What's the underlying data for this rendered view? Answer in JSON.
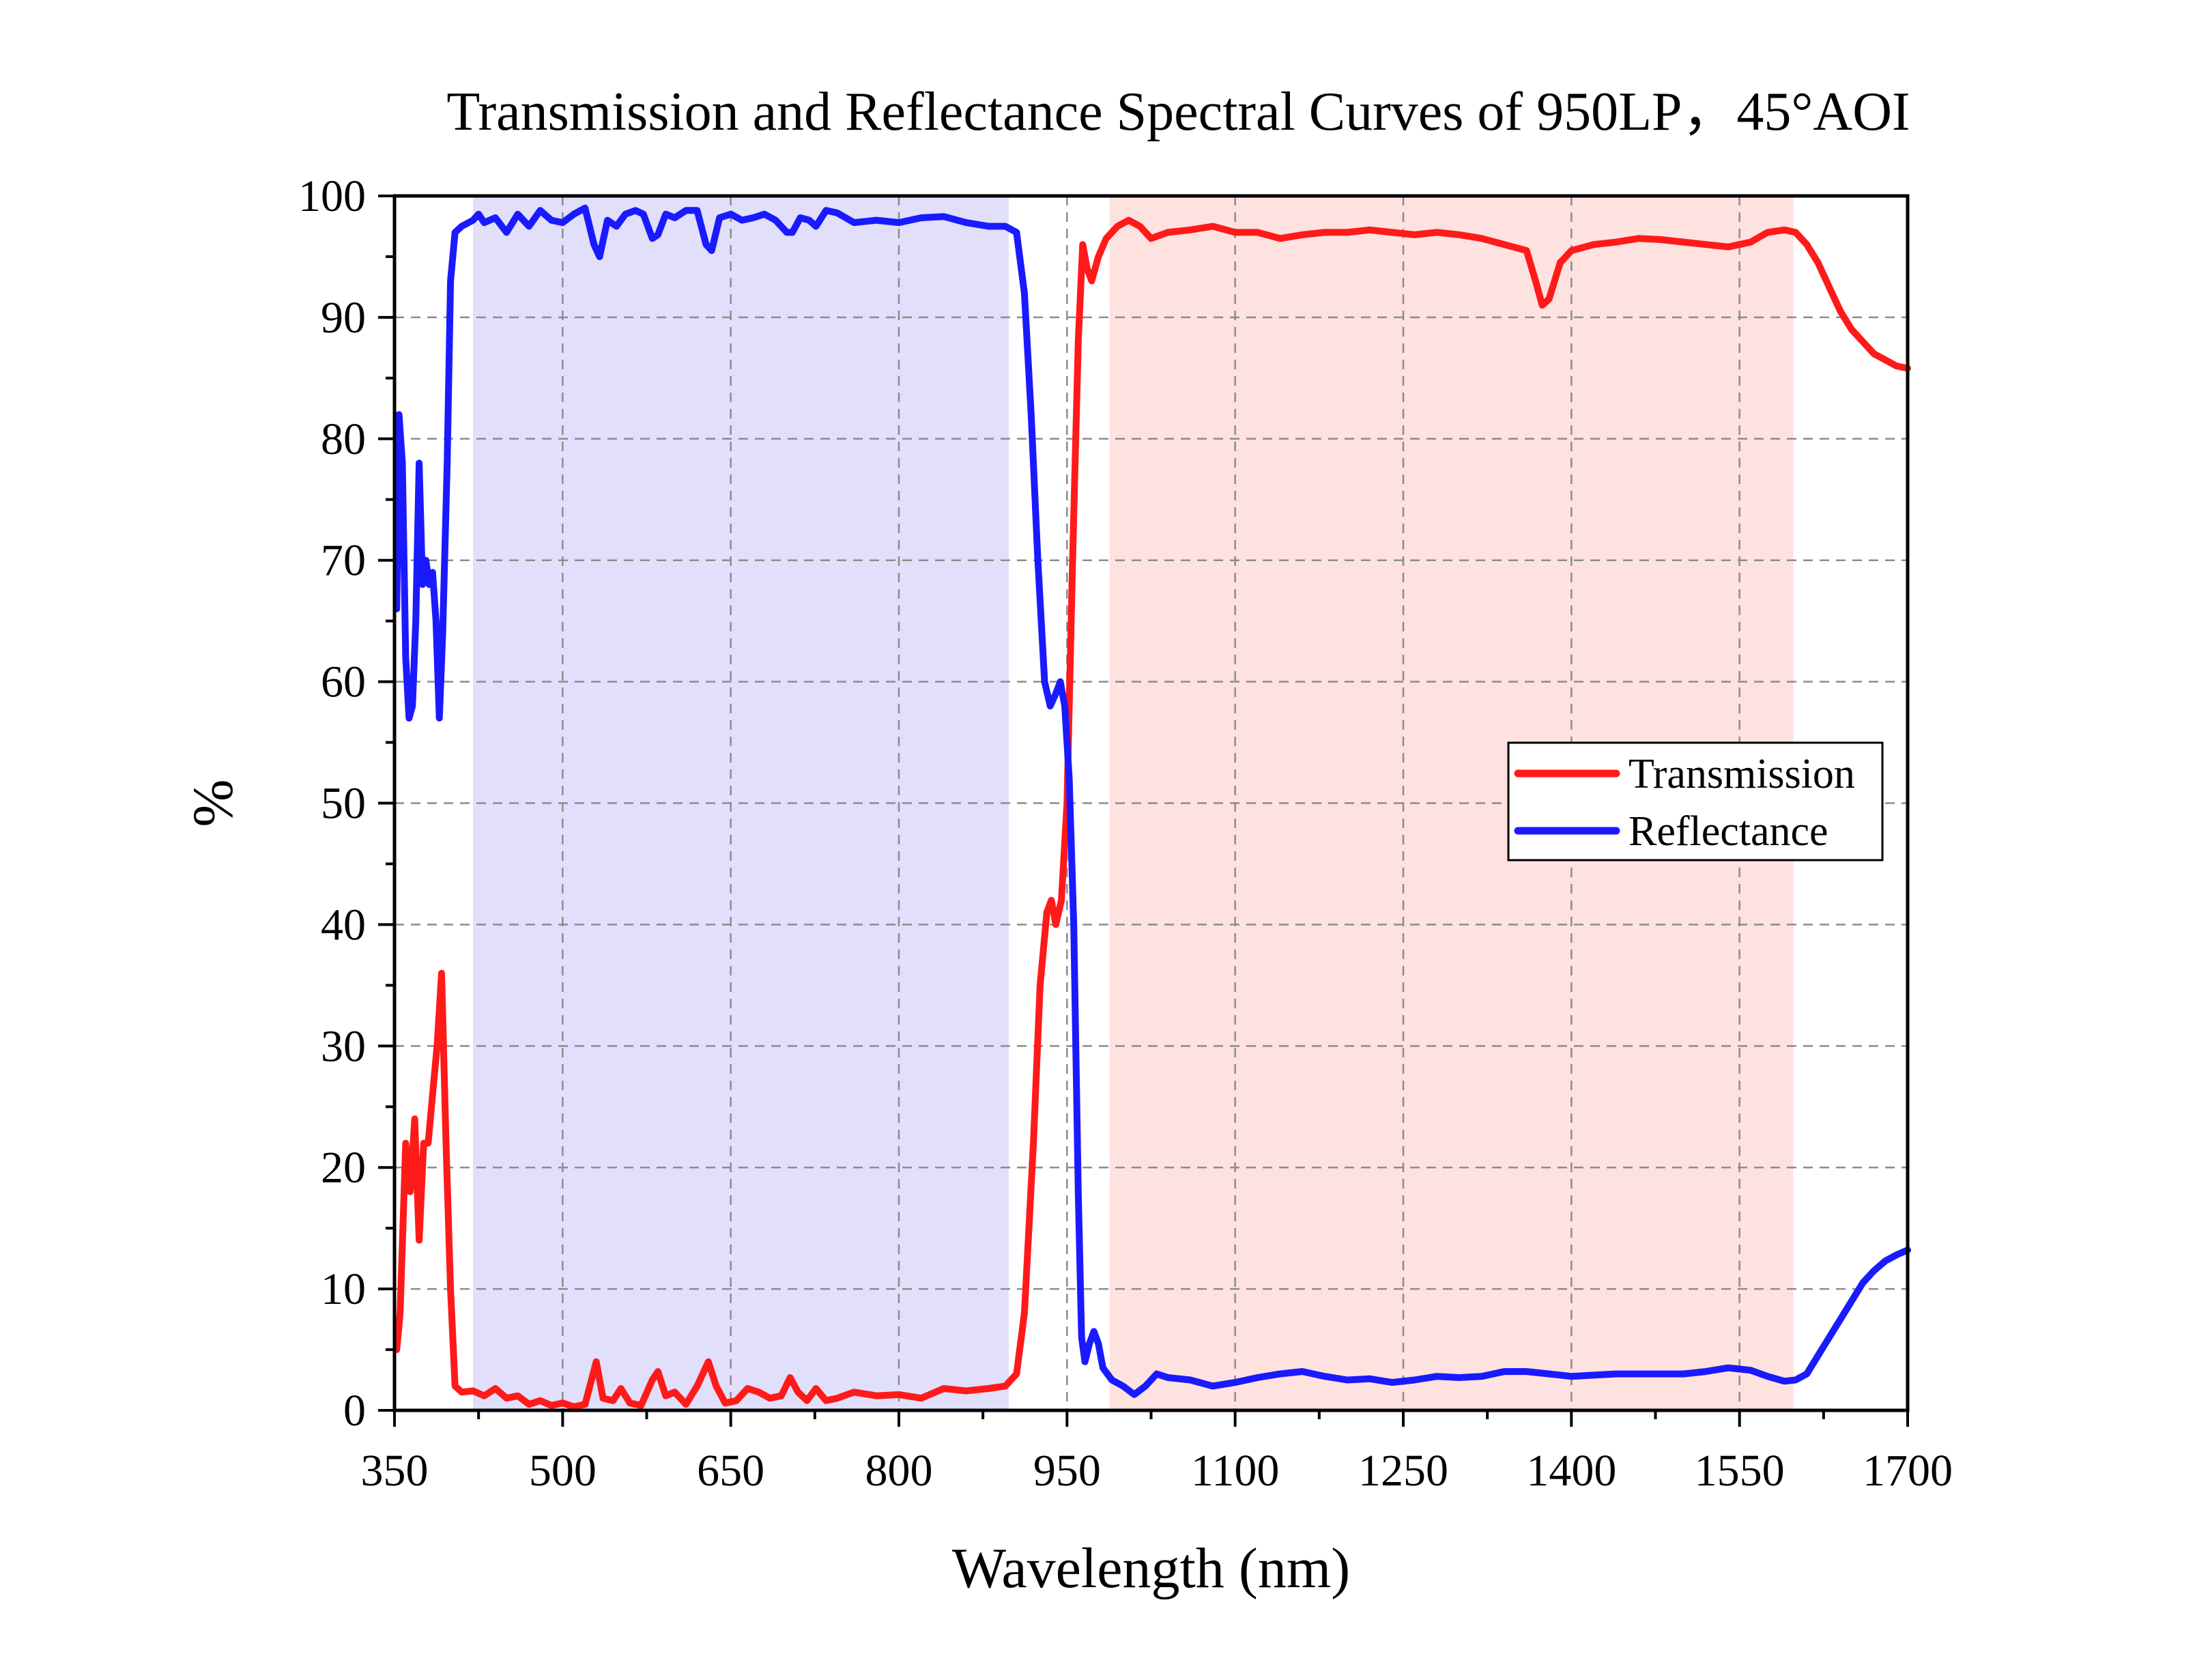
{
  "chart_data": {
    "type": "line",
    "title": "Transmission and Reflectance Spectral Curves of 950LP，45°AOI",
    "xlabel": "Wavelength (nm)",
    "ylabel": "%",
    "xlim": [
      350,
      1700
    ],
    "ylim": [
      0,
      100
    ],
    "xticks": [
      350,
      500,
      650,
      800,
      950,
      1100,
      1250,
      1400,
      1550,
      1700
    ],
    "yticks": [
      0,
      10,
      20,
      30,
      40,
      50,
      60,
      70,
      80,
      90,
      100
    ],
    "grid": true,
    "legend_position": "right-middle",
    "bands": [
      {
        "name": "reflection band",
        "x_start": 420,
        "x_end": 898,
        "color": "#e1dffa"
      },
      {
        "name": "transmission band",
        "x_start": 988,
        "x_end": 1598,
        "color": "#fde2df"
      }
    ],
    "series": [
      {
        "name": "Transmission",
        "color": "#ff1a1a",
        "points": [
          [
            352,
            5
          ],
          [
            355,
            8
          ],
          [
            360,
            22
          ],
          [
            364,
            18
          ],
          [
            368,
            24
          ],
          [
            372,
            14
          ],
          [
            376,
            22
          ],
          [
            380,
            22
          ],
          [
            384,
            26
          ],
          [
            388,
            30
          ],
          [
            392,
            36
          ],
          [
            396,
            22
          ],
          [
            400,
            10
          ],
          [
            404,
            2
          ],
          [
            410,
            1.5
          ],
          [
            420,
            1.6
          ],
          [
            430,
            1.2
          ],
          [
            440,
            1.8
          ],
          [
            450,
            1
          ],
          [
            460,
            1.2
          ],
          [
            470,
            0.5
          ],
          [
            480,
            0.8
          ],
          [
            490,
            0.4
          ],
          [
            500,
            0.6
          ],
          [
            510,
            0.3
          ],
          [
            520,
            0.5
          ],
          [
            530,
            4
          ],
          [
            536,
            1
          ],
          [
            545,
            0.8
          ],
          [
            552,
            1.8
          ],
          [
            560,
            0.6
          ],
          [
            570,
            0.4
          ],
          [
            580,
            2.5
          ],
          [
            585,
            3.2
          ],
          [
            592,
            1.2
          ],
          [
            600,
            1.5
          ],
          [
            610,
            0.5
          ],
          [
            620,
            2
          ],
          [
            630,
            4
          ],
          [
            637,
            2
          ],
          [
            645,
            0.6
          ],
          [
            655,
            0.8
          ],
          [
            665,
            1.8
          ],
          [
            675,
            1.5
          ],
          [
            685,
            1
          ],
          [
            695,
            1.2
          ],
          [
            703,
            2.7
          ],
          [
            710,
            1.5
          ],
          [
            718,
            0.8
          ],
          [
            726,
            1.8
          ],
          [
            735,
            0.8
          ],
          [
            745,
            1
          ],
          [
            760,
            1.5
          ],
          [
            780,
            1.2
          ],
          [
            800,
            1.3
          ],
          [
            820,
            1
          ],
          [
            840,
            1.8
          ],
          [
            860,
            1.6
          ],
          [
            880,
            1.8
          ],
          [
            895,
            2
          ],
          [
            905,
            3
          ],
          [
            912,
            8
          ],
          [
            920,
            22
          ],
          [
            926,
            35
          ],
          [
            932,
            41
          ],
          [
            936,
            42
          ],
          [
            940,
            40
          ],
          [
            945,
            42
          ],
          [
            950,
            50
          ],
          [
            955,
            70
          ],
          [
            960,
            88
          ],
          [
            964,
            96
          ],
          [
            968,
            94
          ],
          [
            972,
            93
          ],
          [
            978,
            95
          ],
          [
            985,
            96.5
          ],
          [
            995,
            97.5
          ],
          [
            1005,
            98
          ],
          [
            1015,
            97.5
          ],
          [
            1025,
            96.5
          ],
          [
            1040,
            97
          ],
          [
            1060,
            97.2
          ],
          [
            1080,
            97.5
          ],
          [
            1100,
            97
          ],
          [
            1120,
            97
          ],
          [
            1140,
            96.5
          ],
          [
            1160,
            96.8
          ],
          [
            1180,
            97
          ],
          [
            1200,
            97
          ],
          [
            1220,
            97.2
          ],
          [
            1240,
            97
          ],
          [
            1260,
            96.8
          ],
          [
            1280,
            97
          ],
          [
            1300,
            96.8
          ],
          [
            1320,
            96.5
          ],
          [
            1340,
            96
          ],
          [
            1360,
            95.5
          ],
          [
            1368,
            93
          ],
          [
            1374,
            91
          ],
          [
            1380,
            91.5
          ],
          [
            1390,
            94.5
          ],
          [
            1400,
            95.5
          ],
          [
            1420,
            96
          ],
          [
            1440,
            96.2
          ],
          [
            1460,
            96.5
          ],
          [
            1480,
            96.4
          ],
          [
            1500,
            96.2
          ],
          [
            1520,
            96
          ],
          [
            1540,
            95.8
          ],
          [
            1560,
            96.2
          ],
          [
            1575,
            97
          ],
          [
            1590,
            97.2
          ],
          [
            1600,
            97
          ],
          [
            1610,
            96
          ],
          [
            1620,
            94.5
          ],
          [
            1630,
            92.5
          ],
          [
            1640,
            90.5
          ],
          [
            1650,
            89
          ],
          [
            1660,
            88
          ],
          [
            1670,
            87
          ],
          [
            1680,
            86.5
          ],
          [
            1690,
            86
          ],
          [
            1700,
            85.8
          ]
        ]
      },
      {
        "name": "Reflectance",
        "color": "#1a1aff",
        "points": [
          [
            352,
            66
          ],
          [
            354,
            82
          ],
          [
            357,
            78
          ],
          [
            360,
            62
          ],
          [
            363,
            57
          ],
          [
            366,
            58
          ],
          [
            369,
            65
          ],
          [
            372,
            78
          ],
          [
            375,
            68
          ],
          [
            378,
            70
          ],
          [
            381,
            68
          ],
          [
            384,
            69
          ],
          [
            387,
            65
          ],
          [
            390,
            57
          ],
          [
            393,
            64
          ],
          [
            397,
            78
          ],
          [
            400,
            93
          ],
          [
            404,
            97
          ],
          [
            410,
            97.5
          ],
          [
            420,
            98
          ],
          [
            425,
            98.5
          ],
          [
            430,
            97.8
          ],
          [
            440,
            98.2
          ],
          [
            450,
            97
          ],
          [
            460,
            98.5
          ],
          [
            470,
            97.5
          ],
          [
            480,
            98.8
          ],
          [
            490,
            98
          ],
          [
            500,
            97.8
          ],
          [
            510,
            98.5
          ],
          [
            520,
            99
          ],
          [
            528,
            96
          ],
          [
            533,
            95
          ],
          [
            540,
            98
          ],
          [
            548,
            97.5
          ],
          [
            556,
            98.5
          ],
          [
            565,
            98.8
          ],
          [
            572,
            98.5
          ],
          [
            580,
            96.5
          ],
          [
            585,
            96.8
          ],
          [
            592,
            98.5
          ],
          [
            600,
            98.2
          ],
          [
            610,
            98.8
          ],
          [
            620,
            98.8
          ],
          [
            628,
            96
          ],
          [
            633,
            95.5
          ],
          [
            640,
            98.2
          ],
          [
            650,
            98.5
          ],
          [
            660,
            98
          ],
          [
            670,
            98.2
          ],
          [
            680,
            98.5
          ],
          [
            690,
            98
          ],
          [
            700,
            97
          ],
          [
            705,
            97
          ],
          [
            712,
            98.2
          ],
          [
            720,
            98
          ],
          [
            726,
            97.5
          ],
          [
            735,
            98.8
          ],
          [
            745,
            98.6
          ],
          [
            760,
            97.8
          ],
          [
            780,
            98
          ],
          [
            800,
            97.8
          ],
          [
            820,
            98.2
          ],
          [
            840,
            98.3
          ],
          [
            860,
            97.8
          ],
          [
            880,
            97.5
          ],
          [
            895,
            97.5
          ],
          [
            905,
            97
          ],
          [
            912,
            92
          ],
          [
            918,
            82
          ],
          [
            924,
            70
          ],
          [
            930,
            60
          ],
          [
            935,
            58
          ],
          [
            940,
            59
          ],
          [
            944,
            60
          ],
          [
            948,
            58
          ],
          [
            952,
            52
          ],
          [
            956,
            40
          ],
          [
            960,
            18
          ],
          [
            963,
            6
          ],
          [
            966,
            4
          ],
          [
            970,
            5.5
          ],
          [
            974,
            6.5
          ],
          [
            978,
            5.5
          ],
          [
            982,
            3.5
          ],
          [
            990,
            2.5
          ],
          [
            1000,
            2
          ],
          [
            1010,
            1.3
          ],
          [
            1020,
            2
          ],
          [
            1030,
            3
          ],
          [
            1040,
            2.7
          ],
          [
            1060,
            2.5
          ],
          [
            1080,
            2
          ],
          [
            1100,
            2.3
          ],
          [
            1120,
            2.7
          ],
          [
            1140,
            3
          ],
          [
            1160,
            3.2
          ],
          [
            1180,
            2.8
          ],
          [
            1200,
            2.5
          ],
          [
            1220,
            2.6
          ],
          [
            1240,
            2.3
          ],
          [
            1260,
            2.5
          ],
          [
            1280,
            2.8
          ],
          [
            1300,
            2.7
          ],
          [
            1320,
            2.8
          ],
          [
            1340,
            3.2
          ],
          [
            1360,
            3.2
          ],
          [
            1380,
            3
          ],
          [
            1400,
            2.8
          ],
          [
            1420,
            2.9
          ],
          [
            1440,
            3
          ],
          [
            1460,
            3
          ],
          [
            1480,
            3
          ],
          [
            1500,
            3
          ],
          [
            1520,
            3.2
          ],
          [
            1540,
            3.5
          ],
          [
            1560,
            3.3
          ],
          [
            1575,
            2.8
          ],
          [
            1590,
            2.4
          ],
          [
            1600,
            2.5
          ],
          [
            1610,
            3
          ],
          [
            1620,
            4.5
          ],
          [
            1630,
            6
          ],
          [
            1640,
            7.5
          ],
          [
            1650,
            9
          ],
          [
            1660,
            10.5
          ],
          [
            1670,
            11.5
          ],
          [
            1680,
            12.3
          ],
          [
            1690,
            12.8
          ],
          [
            1700,
            13.2
          ]
        ]
      }
    ]
  }
}
